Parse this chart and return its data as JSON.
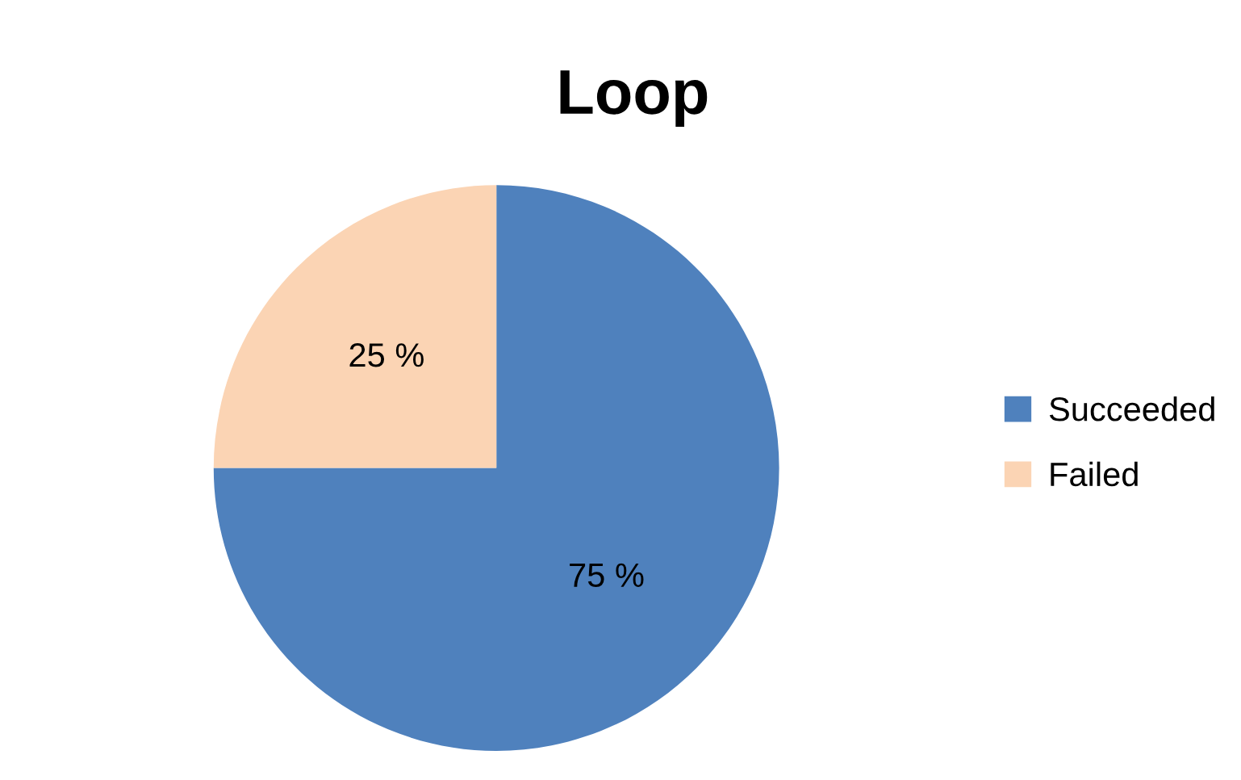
{
  "chart_data": {
    "type": "pie",
    "title": "Loop",
    "categories": [
      "Succeeded",
      "Failed"
    ],
    "values": [
      75,
      25
    ],
    "colors": [
      "#4f81bd",
      "#fbd4b4"
    ],
    "value_labels": [
      "75 %",
      "25 %"
    ],
    "legend": "right"
  }
}
